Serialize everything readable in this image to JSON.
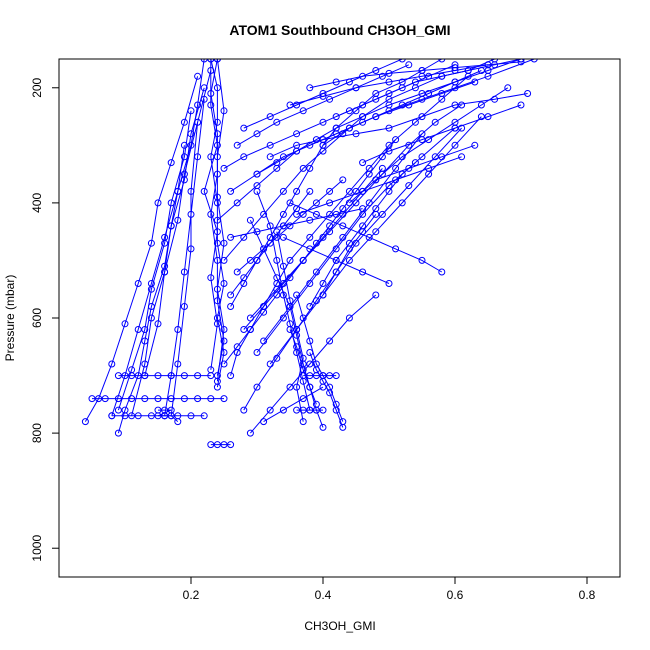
{
  "chart_data": {
    "type": "line",
    "title": "ATOM1 Southbound CH3OH_GMI",
    "xlabel": "CH3OH_GMI",
    "ylabel": "Pressure (mbar)",
    "xlim": [
      0.0,
      0.85
    ],
    "ylim": [
      1050,
      150
    ],
    "y_reversed": true,
    "x_ticks": [
      0.2,
      0.4,
      0.6,
      0.8
    ],
    "x_tick_labels": [
      "0.2",
      "0.4",
      "0.6",
      "0.8"
    ],
    "y_ticks": [
      200,
      400,
      600,
      800,
      1000
    ],
    "y_tick_labels": [
      "200",
      "400",
      "600",
      "800",
      "1000"
    ],
    "grid": false,
    "legend": "none",
    "colors": {
      "series": "#0000ff"
    },
    "marker": "open-circle",
    "series": [
      {
        "x": [
          0.23,
          0.24,
          0.24,
          0.23,
          0.24,
          0.24,
          0.25,
          0.24,
          0.25,
          0.24
        ],
        "y": [
          150,
          200,
          260,
          320,
          400,
          470,
          540,
          600,
          660,
          720
        ]
      },
      {
        "x": [
          0.24,
          0.23,
          0.24,
          0.24,
          0.23,
          0.24,
          0.24,
          0.25,
          0.24
        ],
        "y": [
          150,
          210,
          280,
          350,
          420,
          500,
          570,
          640,
          700
        ]
      },
      {
        "x": [
          0.23,
          0.23,
          0.24,
          0.22,
          0.24,
          0.23,
          0.24,
          0.23
        ],
        "y": [
          150,
          230,
          300,
          380,
          450,
          530,
          610,
          690
        ]
      },
      {
        "x": [
          0.24,
          0.25,
          0.24,
          0.24,
          0.25,
          0.24,
          0.25,
          0.24
        ],
        "y": [
          150,
          240,
          320,
          390,
          470,
          550,
          620,
          710
        ]
      },
      {
        "x": [
          0.22,
          0.21,
          0.2,
          0.18,
          0.17,
          0.16,
          0.14,
          0.13,
          0.12,
          0.1,
          0.09
        ],
        "y": [
          150,
          230,
          300,
          380,
          440,
          510,
          580,
          640,
          700,
          760,
          800
        ]
      },
      {
        "x": [
          0.21,
          0.19,
          0.17,
          0.15,
          0.14,
          0.12,
          0.1,
          0.08,
          0.06,
          0.04
        ],
        "y": [
          180,
          260,
          330,
          400,
          470,
          540,
          610,
          680,
          740,
          780
        ]
      },
      {
        "x": [
          0.22,
          0.2,
          0.19,
          0.17,
          0.16,
          0.14,
          0.13,
          0.11
        ],
        "y": [
          200,
          280,
          360,
          440,
          520,
          600,
          680,
          770
        ]
      },
      {
        "x": [
          0.23,
          0.21,
          0.19,
          0.18,
          0.16,
          0.15,
          0.13
        ],
        "y": [
          170,
          260,
          350,
          430,
          520,
          610,
          700
        ]
      },
      {
        "x": [
          0.2,
          0.19,
          0.17,
          0.16,
          0.14,
          0.13,
          0.11,
          0.09
        ],
        "y": [
          240,
          320,
          400,
          470,
          550,
          620,
          690,
          760
        ]
      },
      {
        "x": [
          0.22,
          0.21,
          0.2,
          0.19,
          0.18,
          0.17,
          0.16
        ],
        "y": [
          220,
          320,
          420,
          520,
          620,
          700,
          770
        ]
      },
      {
        "x": [
          0.19,
          0.18,
          0.16,
          0.14,
          0.12,
          0.1,
          0.08
        ],
        "y": [
          300,
          380,
          460,
          540,
          620,
          700,
          770
        ]
      },
      {
        "x": [
          0.21,
          0.2,
          0.2,
          0.19,
          0.18,
          0.17
        ],
        "y": [
          260,
          380,
          480,
          580,
          680,
          770
        ]
      },
      {
        "x": [
          0.05,
          0.07,
          0.09,
          0.11,
          0.13,
          0.15,
          0.17,
          0.19,
          0.21,
          0.23,
          0.25
        ],
        "y": [
          740,
          740,
          740,
          740,
          740,
          740,
          740,
          740,
          740,
          740,
          740
        ]
      },
      {
        "x": [
          0.09,
          0.11,
          0.13,
          0.15,
          0.17,
          0.19,
          0.21,
          0.23
        ],
        "y": [
          700,
          700,
          700,
          700,
          700,
          700,
          700,
          700
        ]
      },
      {
        "x": [
          0.08,
          0.1,
          0.12,
          0.14,
          0.16,
          0.18,
          0.2,
          0.22
        ],
        "y": [
          770,
          770,
          770,
          770,
          770,
          770,
          770,
          770
        ]
      },
      {
        "x": [
          0.23,
          0.24,
          0.25,
          0.26
        ],
        "y": [
          820,
          820,
          820,
          820
        ]
      },
      {
        "x": [
          0.29,
          0.31,
          0.33,
          0.35,
          0.36,
          0.37,
          0.38,
          0.39,
          0.4
        ],
        "y": [
          430,
          480,
          530,
          580,
          630,
          680,
          720,
          760,
          790
        ]
      },
      {
        "x": [
          0.3,
          0.32,
          0.33,
          0.34,
          0.35,
          0.36,
          0.37,
          0.38
        ],
        "y": [
          380,
          440,
          500,
          560,
          610,
          660,
          710,
          760
        ]
      },
      {
        "x": [
          0.33,
          0.34,
          0.35,
          0.36,
          0.37,
          0.36,
          0.37
        ],
        "y": [
          450,
          510,
          570,
          620,
          670,
          720,
          780
        ]
      },
      {
        "x": [
          0.36,
          0.37,
          0.38,
          0.39,
          0.4,
          0.41,
          0.42,
          0.43
        ],
        "y": [
          560,
          600,
          640,
          680,
          700,
          720,
          750,
          780
        ]
      },
      {
        "x": [
          0.38,
          0.39,
          0.4,
          0.41,
          0.42,
          0.43
        ],
        "y": [
          660,
          690,
          710,
          730,
          760,
          790
        ]
      },
      {
        "x": [
          0.35,
          0.36,
          0.37,
          0.38,
          0.39
        ],
        "y": [
          620,
          650,
          690,
          720,
          750
        ]
      },
      {
        "x": [
          0.26,
          0.28,
          0.3,
          0.32,
          0.34,
          0.36,
          0.38,
          0.4,
          0.42,
          0.45,
          0.48,
          0.52,
          0.55,
          0.58
        ],
        "y": [
          580,
          540,
          500,
          460,
          420,
          380,
          340,
          300,
          270,
          240,
          210,
          190,
          170,
          150
        ]
      },
      {
        "x": [
          0.25,
          0.28,
          0.31,
          0.34,
          0.37,
          0.4,
          0.43,
          0.46,
          0.5,
          0.54,
          0.58,
          0.62,
          0.66
        ],
        "y": [
          500,
          460,
          420,
          380,
          340,
          310,
          280,
          250,
          220,
          200,
          180,
          170,
          150
        ]
      },
      {
        "x": [
          0.24,
          0.27,
          0.3,
          0.33,
          0.36,
          0.39,
          0.42,
          0.46,
          0.5,
          0.55,
          0.6,
          0.65,
          0.7
        ],
        "y": [
          430,
          400,
          370,
          340,
          310,
          290,
          270,
          250,
          230,
          210,
          190,
          170,
          150
        ]
      },
      {
        "x": [
          0.26,
          0.3,
          0.34,
          0.38,
          0.42,
          0.46,
          0.5,
          0.55,
          0.6,
          0.65,
          0.72
        ],
        "y": [
          380,
          350,
          320,
          300,
          280,
          260,
          240,
          220,
          200,
          180,
          150
        ]
      },
      {
        "x": [
          0.25,
          0.28,
          0.32,
          0.36,
          0.4,
          0.44,
          0.48,
          0.52,
          0.56,
          0.6
        ],
        "y": [
          340,
          320,
          300,
          280,
          260,
          240,
          220,
          200,
          180,
          160
        ]
      },
      {
        "x": [
          0.27,
          0.3,
          0.33,
          0.37,
          0.41,
          0.45,
          0.49,
          0.53
        ],
        "y": [
          300,
          280,
          260,
          240,
          220,
          200,
          180,
          160
        ]
      },
      {
        "x": [
          0.28,
          0.32,
          0.36,
          0.4,
          0.44,
          0.48,
          0.52
        ],
        "y": [
          270,
          250,
          230,
          210,
          190,
          170,
          150
        ]
      },
      {
        "x": [
          0.3,
          0.33,
          0.36,
          0.4,
          0.44,
          0.48,
          0.53,
          0.58,
          0.63
        ],
        "y": [
          350,
          330,
          310,
          290,
          270,
          250,
          230,
          210,
          190
        ]
      },
      {
        "x": [
          0.32,
          0.36,
          0.4,
          0.45,
          0.5,
          0.55,
          0.6,
          0.66,
          0.71
        ],
        "y": [
          320,
          300,
          290,
          280,
          270,
          250,
          230,
          220,
          210
        ]
      },
      {
        "x": [
          0.44,
          0.48,
          0.52,
          0.56,
          0.6,
          0.64,
          0.68
        ],
        "y": [
          400,
          360,
          320,
          290,
          260,
          230,
          200
        ]
      },
      {
        "x": [
          0.36,
          0.41,
          0.46,
          0.51,
          0.56,
          0.61
        ],
        "y": [
          420,
          400,
          380,
          360,
          340,
          320
        ]
      },
      {
        "x": [
          0.35,
          0.39,
          0.43,
          0.47,
          0.51,
          0.55,
          0.58
        ],
        "y": [
          400,
          420,
          440,
          460,
          480,
          500,
          520
        ]
      },
      {
        "x": [
          0.34,
          0.38,
          0.42,
          0.46,
          0.5
        ],
        "y": [
          460,
          480,
          500,
          520,
          540
        ]
      },
      {
        "x": [
          0.26,
          0.3,
          0.34,
          0.38,
          0.42,
          0.46
        ],
        "y": [
          460,
          450,
          440,
          430,
          420,
          410
        ]
      },
      {
        "x": [
          0.27,
          0.29,
          0.31,
          0.33,
          0.35,
          0.37,
          0.39,
          0.41,
          0.43
        ],
        "y": [
          520,
          500,
          480,
          460,
          440,
          420,
          400,
          380,
          360
        ]
      },
      {
        "x": [
          0.26,
          0.28,
          0.3,
          0.32,
          0.34,
          0.36,
          0.38
        ],
        "y": [
          560,
          530,
          500,
          470,
          440,
          410,
          380
        ]
      },
      {
        "x": [
          0.28,
          0.31,
          0.34,
          0.37,
          0.4,
          0.43,
          0.46,
          0.49
        ],
        "y": [
          620,
          580,
          540,
          500,
          460,
          420,
          380,
          340
        ]
      },
      {
        "x": [
          0.29,
          0.33,
          0.37,
          0.41,
          0.45,
          0.49,
          0.53,
          0.57,
          0.61
        ],
        "y": [
          600,
          550,
          500,
          450,
          400,
          350,
          300,
          260,
          230
        ]
      },
      {
        "x": [
          0.3,
          0.34,
          0.38,
          0.42,
          0.46,
          0.5,
          0.55,
          0.6
        ],
        "y": [
          660,
          600,
          540,
          480,
          420,
          370,
          320,
          270
        ]
      },
      {
        "x": [
          0.32,
          0.36,
          0.4,
          0.44,
          0.48,
          0.52,
          0.56,
          0.6,
          0.64
        ],
        "y": [
          680,
          620,
          560,
          500,
          450,
          400,
          350,
          300,
          250
        ]
      },
      {
        "x": [
          0.31,
          0.35,
          0.39,
          0.43,
          0.47,
          0.51,
          0.55
        ],
        "y": [
          640,
          580,
          520,
          460,
          400,
          340,
          280
        ]
      },
      {
        "x": [
          0.25,
          0.27,
          0.29,
          0.31,
          0.33,
          0.35,
          0.37,
          0.39,
          0.41,
          0.43,
          0.45,
          0.47,
          0.49,
          0.51
        ],
        "y": [
          680,
          650,
          620,
          590,
          560,
          530,
          500,
          470,
          440,
          410,
          380,
          350,
          320,
          290
        ]
      },
      {
        "x": [
          0.26,
          0.27,
          0.29,
          0.31,
          0.33,
          0.35,
          0.38,
          0.41,
          0.44,
          0.47,
          0.5,
          0.54,
          0.58,
          0.62
        ],
        "y": [
          700,
          660,
          620,
          580,
          540,
          500,
          460,
          420,
          380,
          340,
          300,
          260,
          220,
          180
        ]
      },
      {
        "x": [
          0.28,
          0.3,
          0.33,
          0.36,
          0.39,
          0.42,
          0.45,
          0.49,
          0.53,
          0.57,
          0.61
        ],
        "y": [
          760,
          720,
          670,
          620,
          570,
          520,
          470,
          420,
          370,
          320,
          270
        ]
      },
      {
        "x": [
          0.29,
          0.32,
          0.35,
          0.38,
          0.41,
          0.44,
          0.48
        ],
        "y": [
          800,
          760,
          720,
          680,
          640,
          600,
          560
        ]
      },
      {
        "x": [
          0.31,
          0.34,
          0.37,
          0.4
        ],
        "y": [
          780,
          760,
          740,
          720
        ]
      },
      {
        "x": [
          0.4,
          0.44,
          0.48,
          0.52,
          0.56,
          0.6,
          0.64
        ],
        "y": [
          300,
          270,
          250,
          230,
          210,
          190,
          170
        ]
      },
      {
        "x": [
          0.42,
          0.46,
          0.5,
          0.54,
          0.58,
          0.62,
          0.66,
          0.7
        ],
        "y": [
          250,
          230,
          210,
          190,
          180,
          170,
          160,
          150
        ]
      },
      {
        "x": [
          0.38,
          0.42,
          0.46,
          0.5,
          0.55,
          0.6,
          0.65,
          0.7
        ],
        "y": [
          200,
          190,
          180,
          175,
          170,
          165,
          160,
          155
        ]
      },
      {
        "x": [
          0.35,
          0.4,
          0.45,
          0.5,
          0.55,
          0.6,
          0.65
        ],
        "y": [
          230,
          215,
          200,
          190,
          180,
          170,
          160
        ]
      },
      {
        "x": [
          0.46,
          0.5,
          0.55,
          0.6,
          0.65,
          0.7
        ],
        "y": [
          330,
          310,
          290,
          270,
          250,
          230
        ]
      },
      {
        "x": [
          0.48,
          0.53,
          0.58,
          0.63
        ],
        "y": [
          360,
          340,
          320,
          300
        ]
      },
      {
        "x": [
          0.15,
          0.16,
          0.17,
          0.15,
          0.16,
          0.17,
          0.18
        ],
        "y": [
          760,
          760,
          760,
          770,
          770,
          770,
          780
        ]
      },
      {
        "x": [
          0.37,
          0.38,
          0.39,
          0.4,
          0.41,
          0.42
        ],
        "y": [
          700,
          700,
          700,
          700,
          700,
          700
        ]
      },
      {
        "x": [
          0.36,
          0.37,
          0.38,
          0.39,
          0.4
        ],
        "y": [
          760,
          760,
          760,
          760,
          760
        ]
      },
      {
        "x": [
          0.38,
          0.4,
          0.42,
          0.44,
          0.46,
          0.48,
          0.5,
          0.52,
          0.54
        ],
        "y": [
          580,
          540,
          500,
          470,
          440,
          410,
          380,
          350,
          330
        ]
      },
      {
        "x": [
          0.4,
          0.42,
          0.44,
          0.46,
          0.48
        ],
        "y": [
          560,
          520,
          480,
          450,
          420
        ]
      }
    ]
  }
}
